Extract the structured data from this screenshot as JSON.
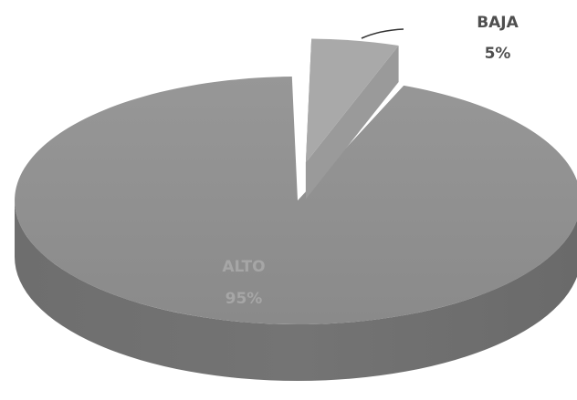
{
  "chart_data": {
    "type": "pie",
    "style": "3d-exploded",
    "title": "",
    "slices": [
      {
        "label": "ALTO",
        "value": 95,
        "display": "95%",
        "color": "#8e8e8e",
        "label_color": "#a6a6a6"
      },
      {
        "label": "BAJA",
        "value": 5,
        "display": "5%",
        "color": "#a9a9a9",
        "label_color": "#4f4f4f"
      }
    ]
  }
}
